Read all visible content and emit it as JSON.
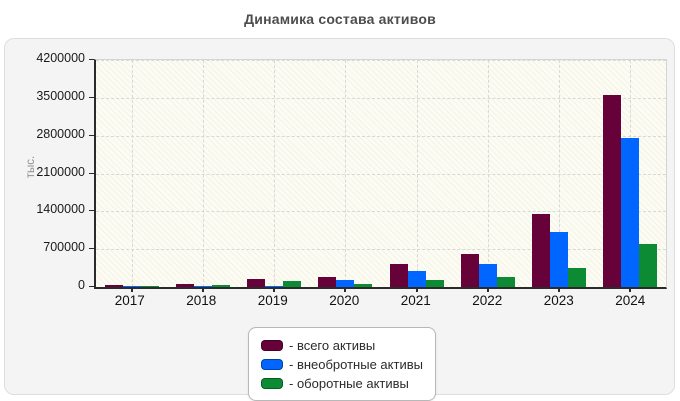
{
  "title": "Динамика состава активов",
  "chart_data": {
    "type": "bar",
    "title": "Динамика состава активов",
    "xlabel": "",
    "ylabel": "тыс.",
    "ylim": [
      0,
      4200000
    ],
    "ytick_step": 700000,
    "yticks": [
      0,
      700000,
      1400000,
      2100000,
      2800000,
      3500000,
      4200000
    ],
    "grid": true,
    "legend_position": "bottom",
    "categories": [
      "2017",
      "2018",
      "2019",
      "2020",
      "2021",
      "2022",
      "2023",
      "2024"
    ],
    "series": [
      {
        "name": "всего активы",
        "legend_label": "- всего активы",
        "color": "#67013a",
        "values": [
          40000,
          60000,
          140000,
          185000,
          420000,
          610000,
          1360000,
          3550000
        ]
      },
      {
        "name": "внеобротные активы",
        "legend_label": "- внеобротные активы",
        "color": "#0066ff",
        "values": [
          20000,
          20000,
          25000,
          125000,
          290000,
          420000,
          1010000,
          2750000
        ]
      },
      {
        "name": "оборотные активы",
        "legend_label": "- оборотные активы",
        "color": "#0d8b34",
        "values": [
          20000,
          40000,
          115000,
          60000,
          130000,
          190000,
          350000,
          800000
        ]
      }
    ]
  },
  "colors": {
    "card_background": "#f4f4f4",
    "axis": "#2b2b2b",
    "gridline": "#d8d8d8",
    "title_text": "#4d4d4d",
    "series_total": "#67013a",
    "series_noncurrent": "#0066ff",
    "series_current": "#0d8b34"
  }
}
